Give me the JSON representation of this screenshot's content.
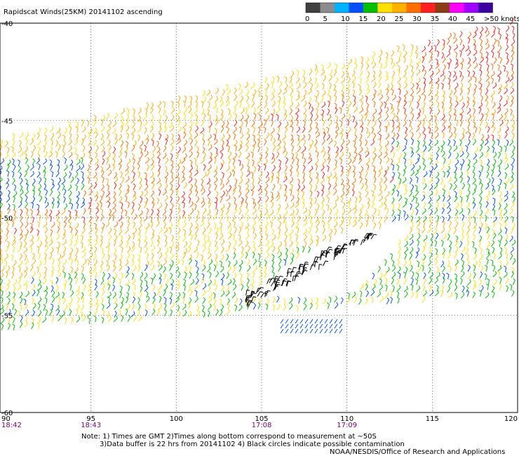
{
  "title": "Rapidscat Winds(25KM) 20141102 ascending",
  "legend": {
    "labels": [
      "0",
      "5",
      "10",
      "15",
      "20",
      "25",
      "30",
      "35",
      "40",
      "45",
      ">50 knots"
    ],
    "colors": [
      "#404040",
      "#8c8c8c",
      "#00b4ff",
      "#0050ff",
      "#00c000",
      "#ffe000",
      "#ffb000",
      "#ff7000",
      "#ff2020",
      "#8c3c14",
      "#ff00ff",
      "#a000ff",
      "#3c00a0"
    ]
  },
  "lat_labels": [
    "-40",
    "-45",
    "-50",
    "-55",
    "-60"
  ],
  "lon_labels": [
    "90",
    "95",
    "100",
    "105",
    "110",
    "115",
    "120"
  ],
  "time_labels": [
    "18:42",
    "18:43",
    "17:08",
    "17:09"
  ],
  "notes": {
    "line1": "Note: 1) Times are GMT 2)Times along bottom correspond to measurement at ~50S",
    "line2": "3)Data buffer is 22 hrs from 20141102 4) Black circles indicate possible contamination",
    "line3": "NOAA/NESDIS/Office of Research and Applications"
  }
}
